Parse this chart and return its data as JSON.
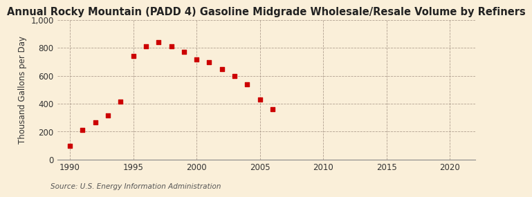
{
  "title": "Annual Rocky Mountain (PADD 4) Gasoline Midgrade Wholesale/Resale Volume by Refiners",
  "ylabel": "Thousand Gallons per Day",
  "source": "Source: U.S. Energy Information Administration",
  "background_color": "#faefd9",
  "years": [
    1990,
    1991,
    1992,
    1993,
    1994,
    1995,
    1996,
    1997,
    1998,
    1999,
    2000,
    2001,
    2002,
    2003,
    2004,
    2005,
    2006
  ],
  "values": [
    100,
    210,
    265,
    315,
    415,
    740,
    810,
    840,
    810,
    770,
    715,
    695,
    645,
    600,
    540,
    430,
    360
  ],
  "marker_color": "#cc0000",
  "xlim": [
    1989,
    2022
  ],
  "ylim": [
    0,
    1000
  ],
  "yticks": [
    0,
    200,
    400,
    600,
    800,
    1000
  ],
  "xticks": [
    1990,
    1995,
    2000,
    2005,
    2010,
    2015,
    2020
  ],
  "title_fontsize": 10.5,
  "ylabel_fontsize": 8.5,
  "source_fontsize": 7.5,
  "tick_fontsize": 8.5
}
